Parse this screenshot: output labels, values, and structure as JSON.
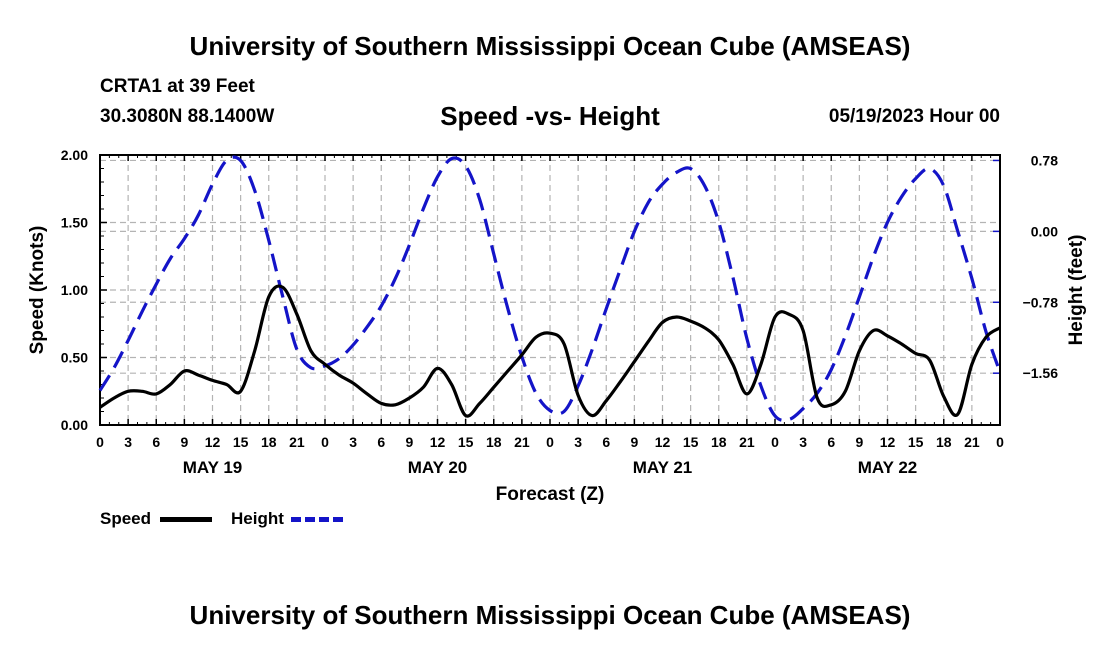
{
  "header": {
    "title": "University of Southern Mississippi Ocean Cube (AMSEAS)",
    "station": "CRTA1 at 39 Feet",
    "coords": "30.3080N  88.1400W",
    "chart_title": "Speed -vs- Height",
    "run_date": "05/19/2023 Hour 00"
  },
  "footer": {
    "title": "University of Southern Mississippi Ocean Cube (AMSEAS)"
  },
  "legend": {
    "speed_label": "Speed",
    "height_label": "Height"
  },
  "colors": {
    "speed": "#000000",
    "height": "#1414c8",
    "grid": "#b4b4b4"
  },
  "chart_data": {
    "type": "line",
    "title": "Speed -vs- Height",
    "xlabel": "Forecast (Z)",
    "ylabel": "Speed (Knots)",
    "y2label": "Height (feet)",
    "xlim": [
      0,
      96
    ],
    "ylim": [
      0,
      2.0
    ],
    "y2lim": [
      -2.13,
      0.84
    ],
    "x_ticks": [
      0,
      3,
      6,
      9,
      12,
      15,
      18,
      21,
      24,
      27,
      30,
      33,
      36,
      39,
      42,
      45,
      48,
      51,
      54,
      57,
      60,
      63,
      66,
      69,
      72,
      75,
      78,
      81,
      84,
      87,
      90,
      93,
      96
    ],
    "x_tick_labels": [
      "0",
      "3",
      "6",
      "9",
      "12",
      "15",
      "18",
      "21",
      "0",
      "3",
      "6",
      "9",
      "12",
      "15",
      "18",
      "21",
      "0",
      "3",
      "6",
      "9",
      "12",
      "15",
      "18",
      "21",
      "0",
      "3",
      "6",
      "9",
      "12",
      "15",
      "18",
      "21",
      "0"
    ],
    "day_labels": [
      {
        "x": 12,
        "label": "MAY 19"
      },
      {
        "x": 36,
        "label": "MAY 20"
      },
      {
        "x": 60,
        "label": "MAY 21"
      },
      {
        "x": 84,
        "label": "MAY 22"
      }
    ],
    "y_ticks": [
      0,
      0.5,
      1.0,
      1.5,
      2.0
    ],
    "y_tick_labels": [
      "0.00",
      "0.50",
      "1.00",
      "1.50",
      "2.00"
    ],
    "y2_ticks": [
      0.78,
      0.0,
      -0.78,
      -1.56
    ],
    "y2_tick_labels": [
      "0.78",
      "0.00",
      "−0.78",
      "−1.56"
    ],
    "grid": true,
    "legend_position": "bottom-left",
    "series": [
      {
        "name": "Speed",
        "axis": "left",
        "style": "solid",
        "x": [
          0,
          1.5,
          3,
          4.5,
          6,
          7.5,
          9,
          10.5,
          12,
          13.5,
          15,
          16.5,
          18,
          19.5,
          21,
          22.5,
          24,
          25.5,
          27,
          28.5,
          30,
          31.5,
          33,
          34.5,
          36,
          37.5,
          39,
          40.5,
          42,
          43.5,
          45,
          46.5,
          48,
          49.5,
          51,
          52.5,
          54,
          55.5,
          57,
          58.5,
          60,
          61.5,
          63,
          64.5,
          66,
          67.5,
          69,
          70.5,
          72,
          73.5,
          75,
          76.5,
          78,
          79.5,
          81,
          82.5,
          84,
          85.5,
          87,
          88.5,
          90,
          91.5,
          93,
          94.5,
          96
        ],
        "values": [
          0.13,
          0.2,
          0.25,
          0.25,
          0.23,
          0.3,
          0.4,
          0.37,
          0.33,
          0.3,
          0.25,
          0.55,
          0.95,
          1.02,
          0.82,
          0.55,
          0.45,
          0.37,
          0.31,
          0.23,
          0.16,
          0.15,
          0.2,
          0.28,
          0.42,
          0.3,
          0.07,
          0.16,
          0.28,
          0.4,
          0.52,
          0.65,
          0.68,
          0.6,
          0.22,
          0.07,
          0.18,
          0.32,
          0.47,
          0.62,
          0.76,
          0.8,
          0.77,
          0.72,
          0.63,
          0.45,
          0.23,
          0.45,
          0.8,
          0.82,
          0.7,
          0.2,
          0.15,
          0.25,
          0.55,
          0.7,
          0.66,
          0.6,
          0.53,
          0.48,
          0.21,
          0.08,
          0.45,
          0.65,
          0.72
        ]
      },
      {
        "name": "Height",
        "axis": "right",
        "style": "dashed",
        "x": [
          0,
          1.5,
          3,
          4.5,
          6,
          7.5,
          9,
          10.5,
          12,
          13.5,
          15,
          16.5,
          18,
          19.5,
          21,
          22.5,
          24,
          25.5,
          27,
          28.5,
          30,
          31.5,
          33,
          34.5,
          36,
          37.5,
          39,
          40.5,
          42,
          43.5,
          45,
          46.5,
          48,
          49.5,
          51,
          52.5,
          54,
          55.5,
          57,
          58.5,
          60,
          61.5,
          63,
          64.5,
          66,
          67.5,
          69,
          70.5,
          72,
          73.5,
          75,
          76.5,
          78,
          79.5,
          81,
          82.5,
          84,
          85.5,
          87,
          88.5,
          90,
          91.5,
          93,
          94.5,
          96
        ],
        "values": [
          -1.75,
          -1.5,
          -1.2,
          -0.88,
          -0.58,
          -0.3,
          -0.08,
          0.18,
          0.52,
          0.78,
          0.78,
          0.45,
          -0.1,
          -0.72,
          -1.3,
          -1.5,
          -1.48,
          -1.4,
          -1.25,
          -1.05,
          -0.82,
          -0.52,
          -0.15,
          0.25,
          0.6,
          0.8,
          0.72,
          0.35,
          -0.25,
          -0.85,
          -1.38,
          -1.78,
          -1.97,
          -1.98,
          -1.7,
          -1.3,
          -0.85,
          -0.42,
          0.0,
          0.32,
          0.52,
          0.65,
          0.69,
          0.5,
          0.1,
          -0.5,
          -1.18,
          -1.7,
          -2.03,
          -2.07,
          -1.95,
          -1.78,
          -1.52,
          -1.15,
          -0.72,
          -0.28,
          0.1,
          0.38,
          0.58,
          0.69,
          0.5,
          0.0,
          -0.52,
          -1.1,
          -1.55
        ]
      }
    ]
  }
}
